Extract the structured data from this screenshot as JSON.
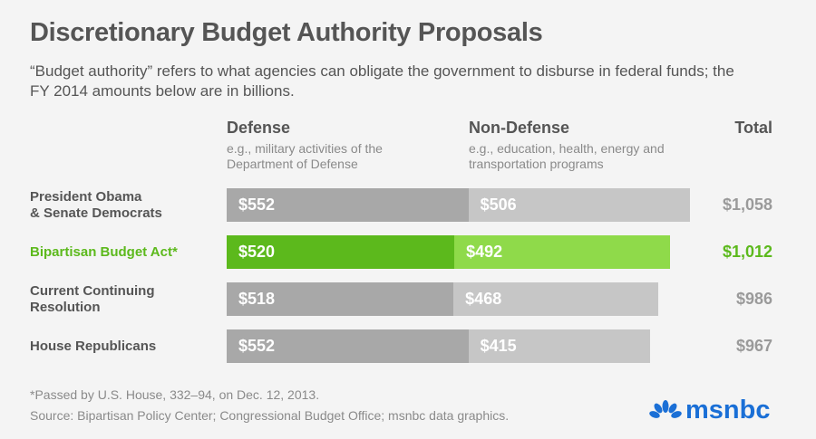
{
  "chart_data": {
    "type": "bar",
    "stacked": true,
    "orientation": "horizontal",
    "title": "Discretionary Budget Authority Proposals",
    "subtitle": "“Budget authority” refers to what agencies can obligate the government to disburse in federal funds; the FY 2014 amounts below are in billions.",
    "columns": [
      {
        "name": "Defense",
        "desc": "e.g., military activities of the Department of Defense"
      },
      {
        "name": "Non-Defense",
        "desc": "e.g., education, health, energy and transportation programs"
      },
      {
        "name": "Total"
      }
    ],
    "categories": [
      "President Obama & Senate Democrats",
      "Bipartisan Budget Act*",
      "Current Continuing Resolution",
      "House Republicans"
    ],
    "category_lines": [
      [
        "President Obama",
        "& Senate Democrats"
      ],
      [
        "Bipartisan Budget Act*"
      ],
      [
        "Current Continuing",
        "Resolution"
      ],
      [
        "House Republicans"
      ]
    ],
    "highlight_index": 1,
    "series": [
      {
        "name": "Defense",
        "values": [
          552,
          520,
          518,
          552
        ],
        "labels": [
          "$552",
          "$520",
          "$518",
          "$552"
        ]
      },
      {
        "name": "Non-Defense",
        "values": [
          506,
          492,
          468,
          415
        ],
        "labels": [
          "$506",
          "$492",
          "$468",
          "$415"
        ]
      }
    ],
    "totals": [
      1058,
      1012,
      986,
      967
    ],
    "total_labels": [
      "$1,058",
      "$1,012",
      "$986",
      "$967"
    ],
    "colors": {
      "defense": "#a8a8a8",
      "nondefense": "#c6c6c6",
      "defense_hl": "#5cb91c",
      "nondefense_hl": "#8fda4a",
      "hl_text": "#5cb91c",
      "total": "#9a9a9a"
    }
  },
  "footnote": "*Passed by U.S. House, 332–94, on Dec. 12, 2013.",
  "source": "Source: Bipartisan Policy Center; Congressional Budget Office; msnbc data graphics.",
  "logo": "msnbc"
}
